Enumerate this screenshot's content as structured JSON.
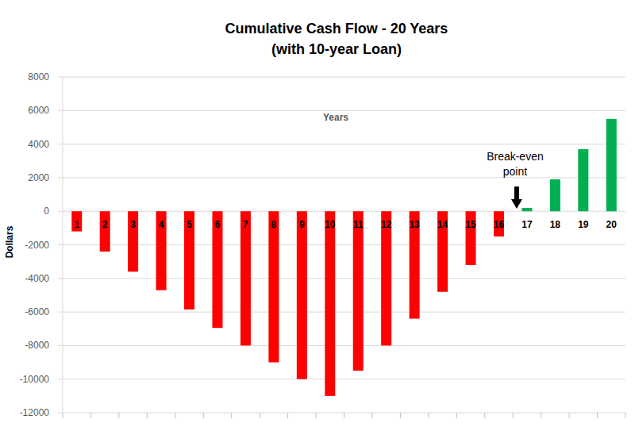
{
  "chart_data": {
    "type": "bar",
    "title": "Cumulative Cash Flow - 20 Years",
    "subtitle": "(with 10-year Loan)",
    "x_label": "Years",
    "y_label": "Dollars",
    "annotations": [
      "Break-even point"
    ],
    "categories": [
      "1",
      "2",
      "3",
      "4",
      "5",
      "6",
      "7",
      "8",
      "9",
      "10",
      "11",
      "12",
      "13",
      "14",
      "15",
      "16",
      "17",
      "18",
      "19",
      "20"
    ],
    "values": [
      -1200,
      -2400,
      -3600,
      -4700,
      -5850,
      -6950,
      -8000,
      -9000,
      -10000,
      -11000,
      -9500,
      -8000,
      -6400,
      -4800,
      -3200,
      -1500,
      200,
      1900,
      3700,
      5500
    ],
    "colors": [
      "#ff0000",
      "#ff0000",
      "#ff0000",
      "#ff0000",
      "#ff0000",
      "#ff0000",
      "#ff0000",
      "#ff0000",
      "#ff0000",
      "#ff0000",
      "#ff0000",
      "#ff0000",
      "#ff0000",
      "#ff0000",
      "#ff0000",
      "#ff0000",
      "#00b050",
      "#00b050",
      "#00b050",
      "#00b050"
    ],
    "ylim": [
      -12000,
      8000
    ],
    "yticks": [
      -12000,
      -10000,
      -8000,
      -6000,
      -4000,
      -2000,
      0,
      2000,
      4000,
      6000,
      8000
    ],
    "grid": true
  }
}
